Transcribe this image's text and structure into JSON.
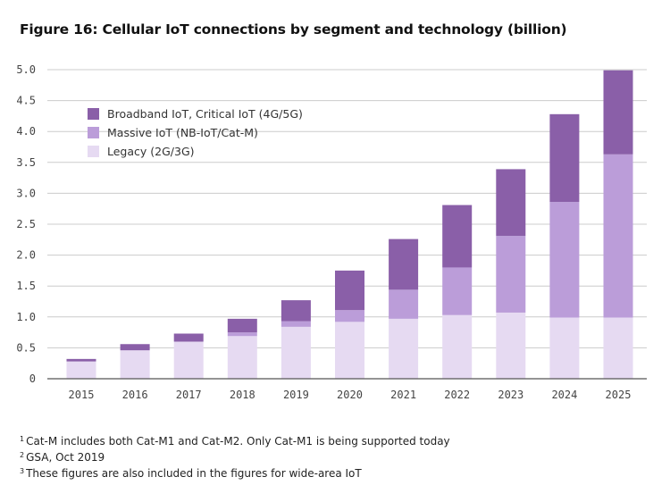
{
  "title": "Figure 16: Cellular IoT connections by segment and technology (billion)",
  "colors": {
    "broadband": "#8a5fa8",
    "massive": "#bb9dd9",
    "legacy": "#e6daf2",
    "grid": "#cccccc",
    "axis": "#555555"
  },
  "chart_data": {
    "type": "bar",
    "stacked": true,
    "title": "Figure 16: Cellular IoT connections by segment and technology (billion)",
    "xlabel": "",
    "ylabel": "",
    "ylim": [
      0,
      5.0
    ],
    "yticks": [
      0,
      0.5,
      1.0,
      1.5,
      2.0,
      2.5,
      3.0,
      3.5,
      4.0,
      4.5,
      5.0
    ],
    "ytick_labels": [
      "0",
      "0.5",
      "1.0",
      "1.5",
      "2.0",
      "2.5",
      "3.0",
      "3.5",
      "4.0",
      "4.5",
      "5.0"
    ],
    "grid": true,
    "legend_position": "top-left",
    "categories": [
      "2015",
      "2016",
      "2017",
      "2018",
      "2019",
      "2020",
      "2021",
      "2022",
      "2023",
      "2024",
      "2025"
    ],
    "series": [
      {
        "name": "Legacy (2G/3G)",
        "key": "legacy",
        "values": [
          0.28,
          0.46,
          0.6,
          0.69,
          0.84,
          0.92,
          0.97,
          1.03,
          1.07,
          0.99,
          0.99
        ]
      },
      {
        "name": "Massive IoT (NB-IoT/Cat-M)",
        "key": "massive",
        "values": [
          0.0,
          0.0,
          0.0,
          0.06,
          0.09,
          0.19,
          0.47,
          0.77,
          1.24,
          1.87,
          2.64
        ]
      },
      {
        "name": "Broadband IoT, Critical IoT (4G/5G)",
        "key": "broadband",
        "values": [
          0.04,
          0.1,
          0.13,
          0.22,
          0.34,
          0.64,
          0.82,
          1.01,
          1.08,
          1.42,
          1.36
        ]
      }
    ]
  },
  "legend": [
    {
      "label": "Broadband IoT, Critical IoT (4G/5G)",
      "key": "broadband"
    },
    {
      "label": "Massive IoT (NB-IoT/Cat-M)",
      "key": "massive"
    },
    {
      "label": "Legacy (2G/3G)",
      "key": "legacy"
    }
  ],
  "footnotes": [
    {
      "mark": "1",
      "text": "Cat-M includes both Cat-M1 and Cat-M2. Only Cat-M1 is being supported today"
    },
    {
      "mark": "2",
      "text": "GSA, Oct 2019"
    },
    {
      "mark": "3",
      "text": "These figures are also included in the figures for wide-area IoT"
    }
  ]
}
